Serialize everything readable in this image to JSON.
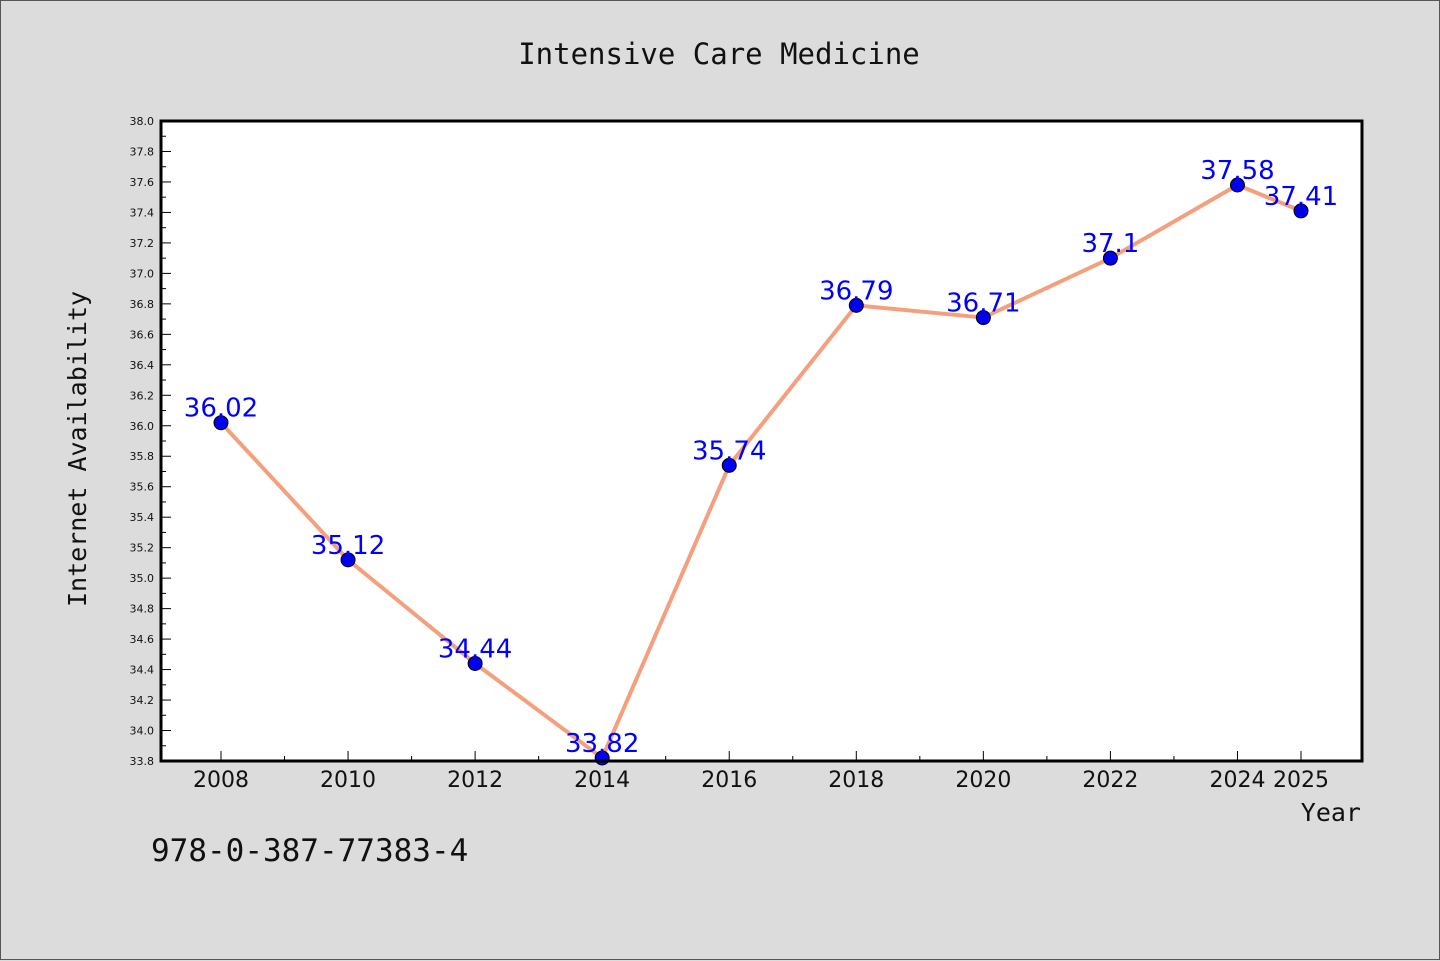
{
  "chart_data": {
    "type": "line",
    "title": "Intensive Care Medicine",
    "xlabel": "Year",
    "ylabel": "Internet Availability",
    "x": [
      2008,
      2010,
      2012,
      2014,
      2016,
      2018,
      2020,
      2022,
      2024,
      2025
    ],
    "series": [
      {
        "values": [
          36.02,
          35.12,
          34.44,
          33.82,
          35.74,
          36.79,
          36.71,
          37.1,
          37.58,
          37.41
        ],
        "labels": [
          "36.02",
          "35.12",
          "34.44",
          "33.82",
          "35.74",
          "36.79",
          "36.71",
          "37.1",
          "37.58",
          "37.41"
        ]
      }
    ],
    "ylim": [
      33.8,
      38.0
    ],
    "yticks": [
      "33.8",
      "34.0",
      "34.2",
      "34.4",
      "34.6",
      "34.8",
      "35.0",
      "35.2",
      "35.4",
      "35.6",
      "35.8",
      "36.0",
      "36.2",
      "36.4",
      "36.6",
      "36.8",
      "37.0",
      "37.2",
      "37.4",
      "37.6",
      "37.8",
      "38.0"
    ],
    "xticks": [
      "2008",
      "2010",
      "2012",
      "2014",
      "2016",
      "2018",
      "2020",
      "2022",
      "2024",
      "2025"
    ],
    "grid": false,
    "colors": {
      "line": "#f4a07e",
      "marker": "#0000ee",
      "data_label": "#0000ff",
      "plot_background": "#ffffff",
      "figure_background": "#dcdcdc"
    }
  },
  "footer_text": "978-0-387-77383-4"
}
